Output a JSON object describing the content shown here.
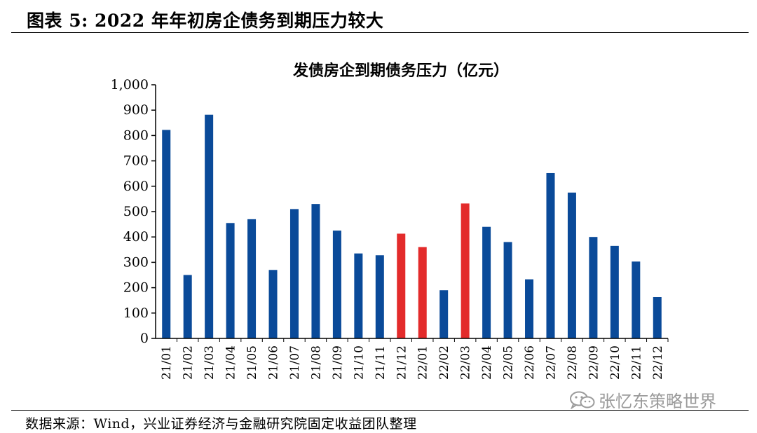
{
  "figure": {
    "title": "图表 5:  2022 年年初房企债务到期压力较大",
    "source": "数据来源：Wind，兴业证券经济与金融研究院固定收益团队整理"
  },
  "watermark": {
    "text": "张忆东策略世界",
    "icon": "wechat-icon",
    "color": "#9b9b9b"
  },
  "colors": {
    "primary_bar": "#0a4a99",
    "highlight_bar": "#e32b2b",
    "axis": "#000000"
  },
  "chart_data": {
    "type": "bar",
    "title": "发债房企到期债务压力（亿元）",
    "xlabel": "",
    "ylabel": "",
    "ylim": [
      0,
      1000
    ],
    "yticks": [
      0,
      100,
      200,
      300,
      400,
      500,
      600,
      700,
      800,
      900,
      1000
    ],
    "ytick_labels": [
      "0",
      "100",
      "200",
      "300",
      "400",
      "500",
      "600",
      "700",
      "800",
      "900",
      "1,000"
    ],
    "categories": [
      "21/01",
      "21/02",
      "21/03",
      "21/04",
      "21/05",
      "21/06",
      "21/07",
      "21/08",
      "21/09",
      "21/10",
      "21/11",
      "21/12",
      "22/01",
      "22/02",
      "22/03",
      "22/04",
      "22/05",
      "22/06",
      "22/07",
      "22/08",
      "22/09",
      "22/10",
      "22/11",
      "22/12"
    ],
    "values": [
      822,
      250,
      882,
      455,
      470,
      270,
      510,
      530,
      425,
      335,
      328,
      413,
      360,
      190,
      532,
      440,
      380,
      233,
      652,
      575,
      400,
      365,
      303,
      163
    ],
    "highlight_categories": [
      "21/12",
      "22/01",
      "22/03"
    ],
    "grid": false,
    "legend": "none"
  }
}
